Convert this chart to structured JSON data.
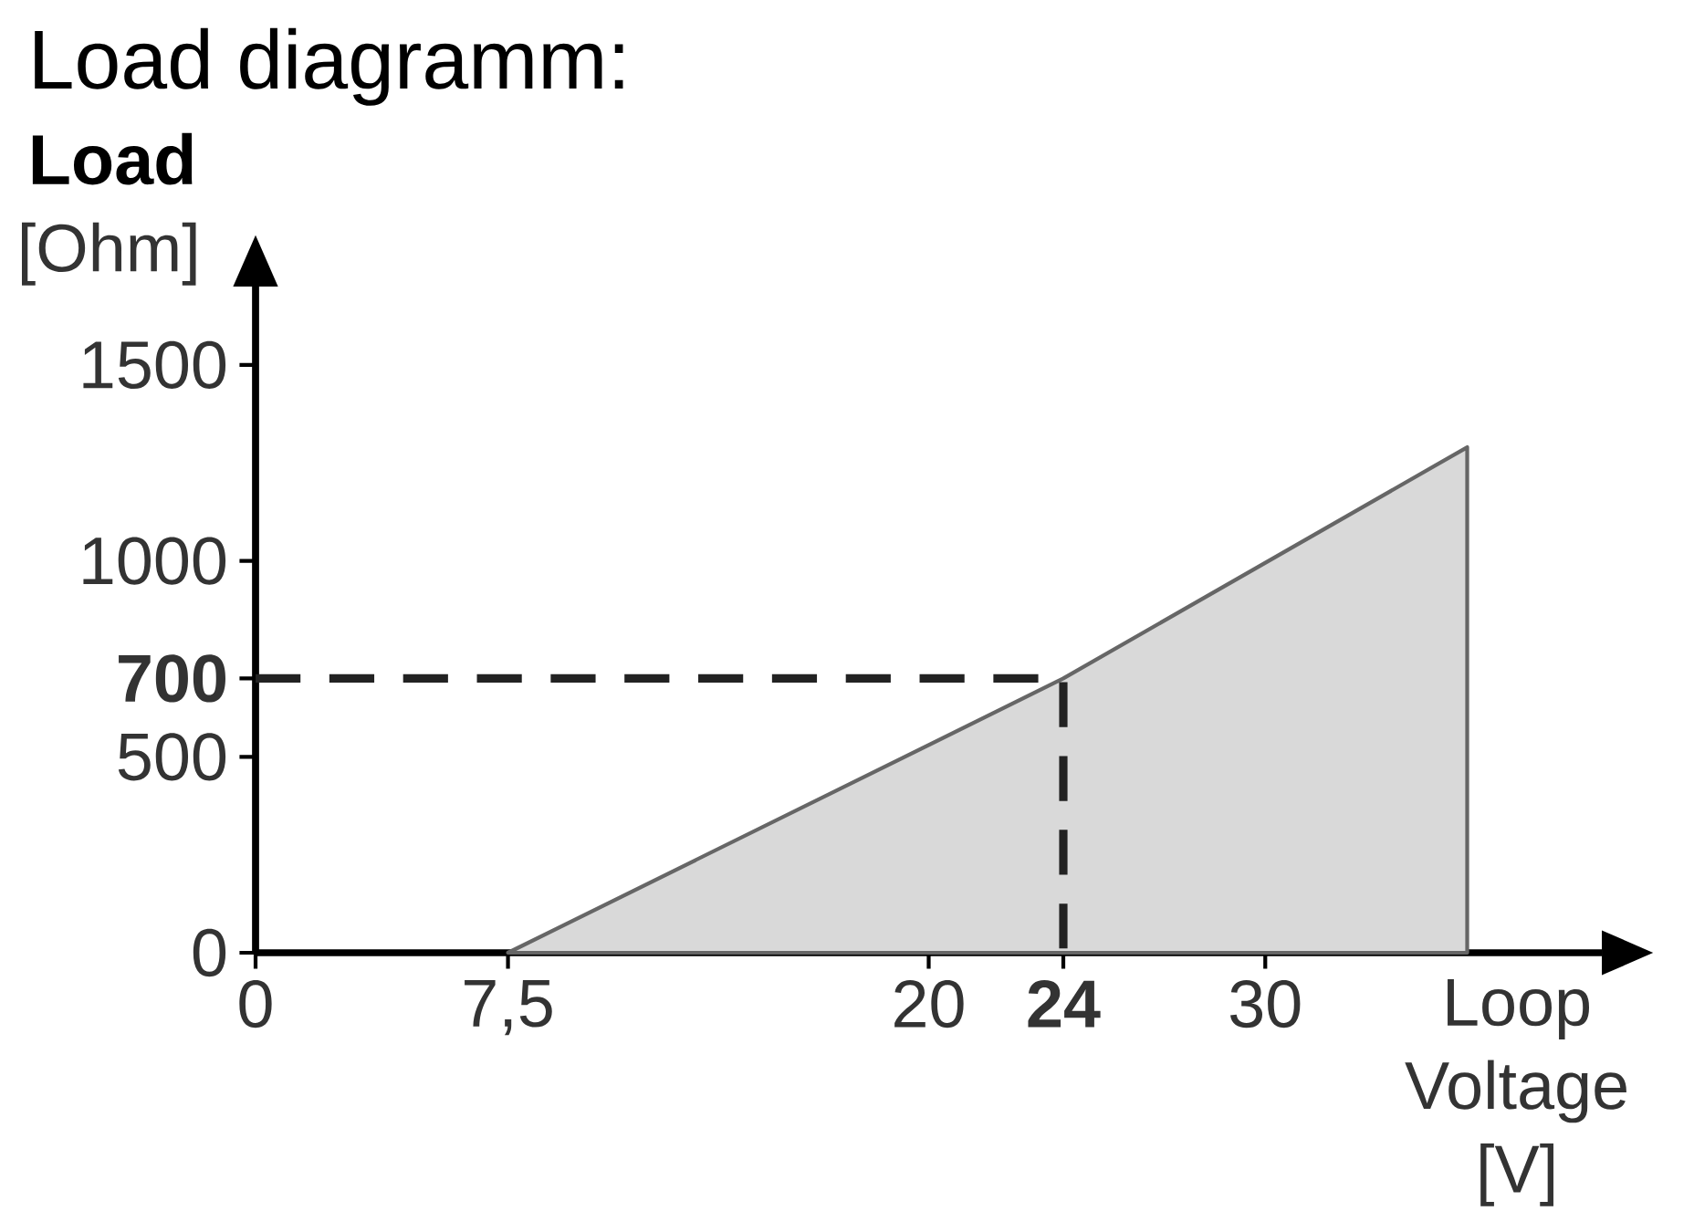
{
  "chart_data": {
    "type": "area",
    "title": "Load diagramm:",
    "subtitle": "Load",
    "xlabel": "Loop Voltage [V]",
    "ylabel": "[Ohm]",
    "series": [
      {
        "color": "#d9d9d9",
        "x": [
          7.5,
          24,
          36
        ],
        "values": [
          0,
          700,
          1290
        ]
      },
      {
        "type": "line",
        "line_style": "dashed",
        "color": "#222222",
        "x": [
          0,
          24,
          24
        ],
        "values": [
          700,
          700,
          0
        ]
      }
    ],
    "xlim": [
      0,
      40
    ],
    "ylim": [
      0,
      1700
    ],
    "xticks": [
      0,
      {
        "value": 7.5,
        "label": "7,5"
      },
      20,
      {
        "value": 24,
        "label": "**24**"
      },
      30
    ],
    "yticks": [
      0,
      500,
      {
        "value": 700,
        "label": "**700**"
      },
      1000,
      1500
    ],
    "grid": false,
    "marker": "none"
  }
}
